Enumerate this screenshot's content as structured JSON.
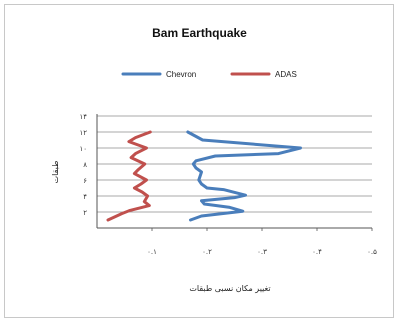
{
  "chart_data": {
    "type": "line",
    "title": "Bam Earthquake",
    "xlabel": "تغییر مکان نسبی طبقات",
    "ylabel": "طبقات",
    "xlim": [
      0,
      0.5
    ],
    "ylim": [
      0,
      14
    ],
    "x_ticks": [
      {
        "value": 0.1,
        "label": "۰.۱"
      },
      {
        "value": 0.2,
        "label": "۰.۲"
      },
      {
        "value": 0.3,
        "label": "۰.۳"
      },
      {
        "value": 0.4,
        "label": "۰.۴"
      },
      {
        "value": 0.5,
        "label": "۰.۵"
      }
    ],
    "y_ticks": [
      {
        "value": 2,
        "label": "۲"
      },
      {
        "value": 4,
        "label": "۴"
      },
      {
        "value": 6,
        "label": "۶"
      },
      {
        "value": 8,
        "label": "۸"
      },
      {
        "value": 10,
        "label": "۱۰"
      },
      {
        "value": 12,
        "label": "۱۲"
      },
      {
        "value": 14,
        "label": "۱۴"
      }
    ],
    "grid": true,
    "legend_position": "top",
    "series": [
      {
        "name": "Chevron",
        "color": "#4a7ebb",
        "points": [
          [
            0.165,
            12
          ],
          [
            0.192,
            11
          ],
          [
            0.37,
            10
          ],
          [
            0.33,
            9.3
          ],
          [
            0.215,
            9
          ],
          [
            0.18,
            8.4
          ],
          [
            0.175,
            8
          ],
          [
            0.18,
            7.5
          ],
          [
            0.19,
            7
          ],
          [
            0.185,
            6
          ],
          [
            0.19,
            5.5
          ],
          [
            0.2,
            5
          ],
          [
            0.23,
            4.8
          ],
          [
            0.27,
            4.1
          ],
          [
            0.25,
            3.8
          ],
          [
            0.19,
            3.4
          ],
          [
            0.195,
            3
          ],
          [
            0.24,
            2.6
          ],
          [
            0.265,
            2.1
          ],
          [
            0.19,
            1.5
          ],
          [
            0.17,
            1
          ]
        ]
      },
      {
        "name": "ADAS",
        "color": "#c0504d",
        "points": [
          [
            0.097,
            12
          ],
          [
            0.07,
            11.3
          ],
          [
            0.058,
            10.8
          ],
          [
            0.09,
            10
          ],
          [
            0.07,
            9.3
          ],
          [
            0.062,
            8.8
          ],
          [
            0.087,
            8
          ],
          [
            0.075,
            7.3
          ],
          [
            0.068,
            6.8
          ],
          [
            0.09,
            6
          ],
          [
            0.08,
            5.5
          ],
          [
            0.068,
            5
          ],
          [
            0.082,
            4.5
          ],
          [
            0.092,
            4
          ],
          [
            0.086,
            3.3
          ],
          [
            0.095,
            2.8
          ],
          [
            0.06,
            2.2
          ],
          [
            0.045,
            1.8
          ],
          [
            0.02,
            1
          ]
        ]
      }
    ]
  }
}
